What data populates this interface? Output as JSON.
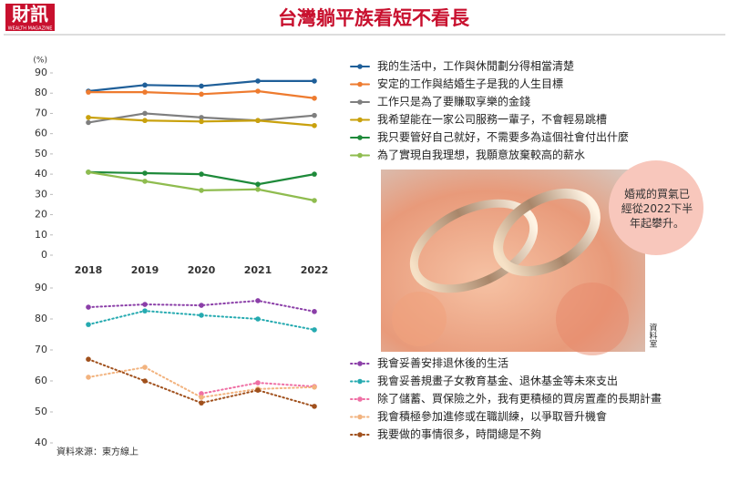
{
  "header": {
    "logo": "財訊",
    "logo_sub": "WEALTH MAGAZINE",
    "title": "台灣躺平族看短不看長"
  },
  "photo": {
    "callout": "婚戒的買氣已經從2022下半年起攀升。",
    "credit": "資料室"
  },
  "source": "資料來源：東方線上",
  "chart_data": [
    {
      "type": "line",
      "ylabel": "(%)",
      "categories": [
        "2018",
        "2019",
        "2020",
        "2021",
        "2022"
      ],
      "ylim": [
        0,
        90
      ],
      "yticks": [
        0,
        10,
        20,
        30,
        40,
        50,
        60,
        70,
        80,
        90
      ],
      "line_style": "solid",
      "series": [
        {
          "name": "我的生活中，工作與休閒劃分得相當清楚",
          "color": "#1f5f99",
          "values": [
            81,
            84,
            83.5,
            86,
            86
          ]
        },
        {
          "name": "安定的工作與結婚生子是我的人生目標",
          "color": "#ee7b2f",
          "values": [
            80.5,
            80.5,
            79.5,
            81,
            77.5
          ]
        },
        {
          "name": "工作只是為了要賺取享樂的金錢",
          "color": "#7f7f7f",
          "values": [
            65.5,
            70,
            68,
            66.5,
            69
          ]
        },
        {
          "name": "我希望能在一家公司服務一輩子，不會輕易跳槽",
          "color": "#c9a10d",
          "values": [
            68,
            66.5,
            66,
            66.5,
            64
          ]
        },
        {
          "name": "我只要管好自己就好，不需要多為這個社會付出什麼",
          "color": "#1e8a3a",
          "values": [
            41,
            40.5,
            40,
            35,
            40
          ]
        },
        {
          "name": "為了實現自我理想，我願意放棄較高的薪水",
          "color": "#8fbc4f",
          "values": [
            41,
            36.5,
            32,
            32.5,
            27
          ]
        }
      ]
    },
    {
      "type": "line",
      "ylim": [
        40,
        90
      ],
      "yticks": [
        40,
        50,
        60,
        70,
        80,
        90
      ],
      "line_style": "dotted",
      "series": [
        {
          "name": "我會妥善安排退休後的生活",
          "color": "#8b3fa8",
          "values": [
            83.8,
            84.7,
            84.4,
            85.9,
            82.4
          ]
        },
        {
          "name": "我會妥善規畫子女教育基金、退休基金等未來支出",
          "color": "#25aab0",
          "values": [
            78.2,
            82.6,
            81.2,
            80,
            76.5
          ]
        },
        {
          "name": "除了儲蓄、買保險之外，我有更積極的買房置產的長期計畫",
          "color": "#ef6fa4",
          "values": [
            null,
            null,
            55.9,
            59.4,
            58.2
          ]
        },
        {
          "name": "我會積極參加進修或在職訓練，以爭取晉升機會",
          "color": "#f2b37f",
          "values": [
            61.2,
            64.4,
            54.7,
            57.4,
            58
          ]
        },
        {
          "name": "我要做的事情很多，時間總是不夠",
          "color": "#a0501c",
          "values": [
            67,
            60,
            52.9,
            57,
            51.8
          ]
        }
      ]
    }
  ]
}
